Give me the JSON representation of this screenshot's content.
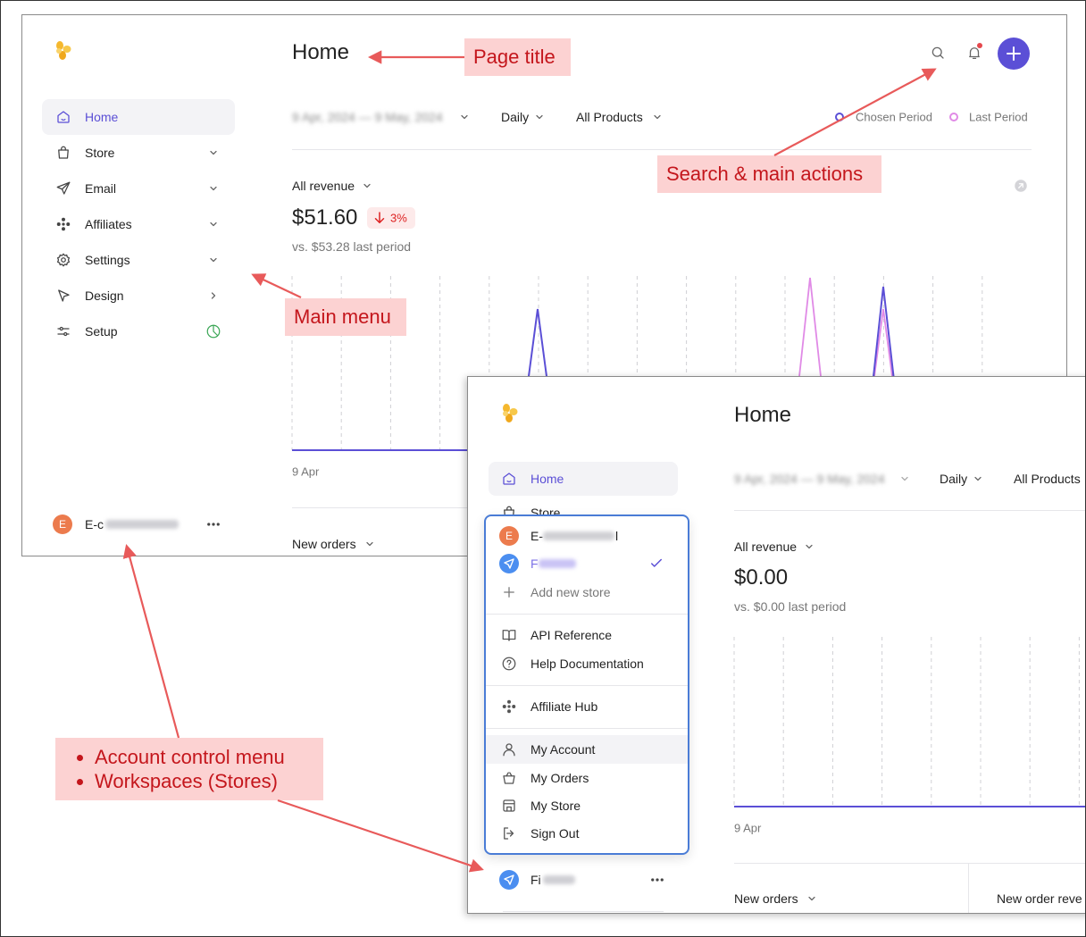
{
  "annotations": {
    "page_title": "Page title",
    "search_actions": "Search & main actions",
    "main_menu": "Main menu",
    "account_list": [
      "Account control menu",
      "Workspaces (Stores)"
    ]
  },
  "screen1": {
    "title": "Home",
    "menu": [
      "Home",
      "Store",
      "Email",
      "Affiliates",
      "Settings",
      "Design",
      "Setup"
    ],
    "filters": {
      "date": "9 Apr, 2024 — 9 May, 2024",
      "interval": "Daily",
      "products": "All Products"
    },
    "legend": [
      "Chosen Period",
      "Last Period"
    ],
    "metric": {
      "label": "All revenue",
      "value": "$51.60",
      "change": "3%",
      "comparison": "vs. $53.28 last period"
    },
    "x_start": "9 Apr",
    "next_metric": "New orders",
    "account": {
      "initial": "E",
      "name": "E-c"
    }
  },
  "screen2": {
    "title": "Home",
    "menu": [
      "Home",
      "Store"
    ],
    "filters": {
      "date": "9 Apr, 2024 — 9 May, 2024",
      "interval": "Daily",
      "products": "All Products"
    },
    "metric": {
      "label": "All revenue",
      "value": "$0.00",
      "comparison": "vs. $0.00 last period"
    },
    "x_start": "9 Apr",
    "next_metrics": [
      "New orders",
      "New order reve"
    ],
    "account": {
      "name": "Fi"
    },
    "dropdown": {
      "stores": [
        {
          "initial": "E",
          "name": "E-",
          "suffix": "l"
        },
        {
          "name": "F"
        }
      ],
      "add_store": "Add new store",
      "links": [
        "API Reference",
        "Help Documentation"
      ],
      "affiliate": "Affiliate Hub",
      "account_items": [
        "My Account",
        "My Orders",
        "My Store",
        "Sign Out"
      ]
    }
  }
}
